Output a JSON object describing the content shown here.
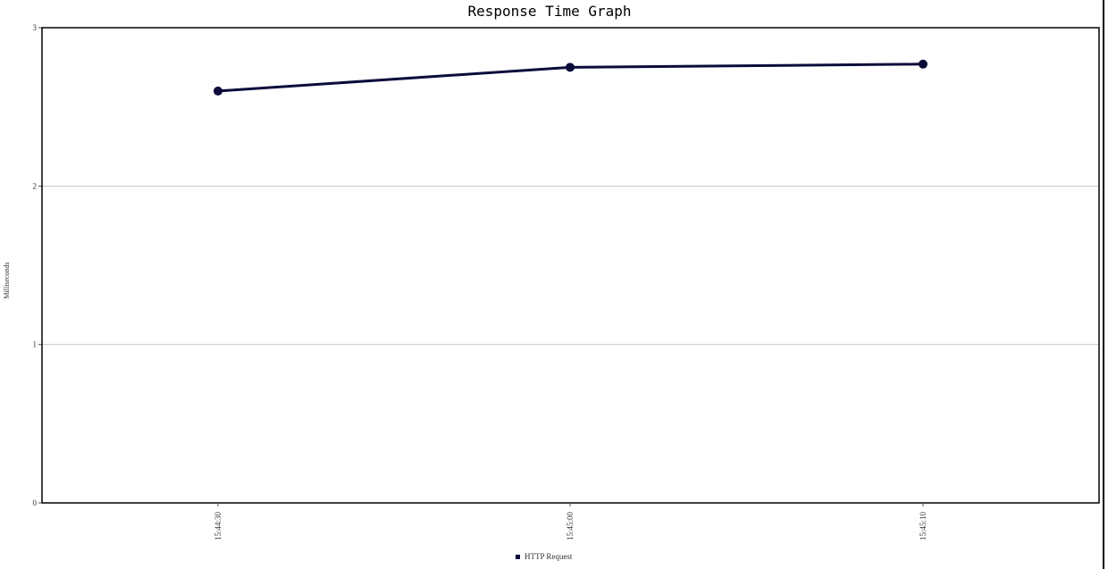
{
  "chart_data": {
    "type": "line",
    "title": "Response Time Graph",
    "xlabel": "",
    "ylabel": "Milliseconds",
    "categories": [
      "15:44:30",
      "15:45:00",
      "15:45:10"
    ],
    "series": [
      {
        "name": "HTTP Request",
        "values": [
          2.6,
          2.75,
          2.77
        ],
        "color": "#0b0b3b"
      }
    ],
    "ylim": [
      0,
      3
    ],
    "yticks": [
      0,
      1,
      2,
      3
    ],
    "grid": true,
    "legend": "bottom"
  }
}
